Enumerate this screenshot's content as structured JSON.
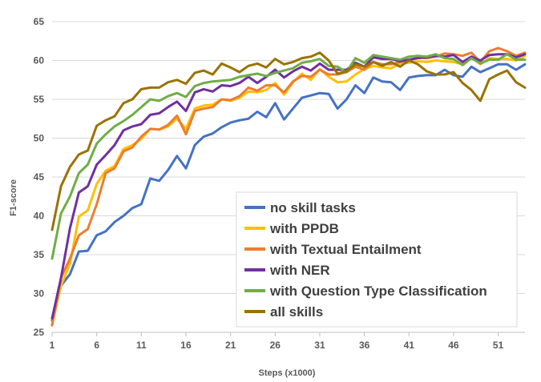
{
  "chart_data": {
    "type": "line",
    "title": "",
    "xlabel": "Steps (x1000)",
    "ylabel": "F1-score",
    "ylim": [
      25,
      65
    ],
    "yticks": [
      25,
      30,
      35,
      40,
      45,
      50,
      55,
      60,
      65
    ],
    "xticks": [
      1,
      6,
      11,
      16,
      21,
      26,
      31,
      36,
      41,
      46,
      51
    ],
    "x": [
      1,
      2,
      3,
      4,
      5,
      6,
      7,
      8,
      9,
      10,
      11,
      12,
      13,
      14,
      15,
      16,
      17,
      18,
      19,
      20,
      21,
      22,
      23,
      24,
      25,
      26,
      27,
      28,
      29,
      30,
      31,
      32,
      33,
      34,
      35,
      36,
      37,
      38,
      39,
      40,
      41,
      42,
      43,
      44,
      45,
      46,
      47,
      48,
      49,
      50,
      51,
      52,
      53,
      54
    ],
    "grid": true,
    "legend_position": "bottom-right",
    "series": [
      {
        "name": "no skill tasks",
        "color": "#4472C4",
        "values": [
          26.5,
          31,
          32.5,
          35.4,
          35.5,
          37.5,
          38,
          39.2,
          40,
          41,
          41.5,
          44.8,
          44.5,
          45.9,
          47.7,
          46.1,
          49.1,
          50.2,
          50.6,
          51.4,
          52,
          52.3,
          52.5,
          53.4,
          52.7,
          54.5,
          52.4,
          53.8,
          55.2,
          55.5,
          55.8,
          55.7,
          53.8,
          55,
          56.8,
          55.8,
          57.8,
          57.3,
          57.2,
          56.2,
          57.8,
          58,
          58.1,
          58.1,
          58.8,
          58.1,
          57.9,
          59.2,
          58.5,
          59,
          59.5,
          59.5,
          58.8,
          59.5
        ]
      },
      {
        "name": "with PPDB",
        "color": "#FFC000",
        "values": [
          26,
          31,
          33.8,
          39.9,
          40.7,
          44.1,
          45.8,
          46.4,
          48.6,
          49.1,
          49.9,
          51.2,
          51.1,
          51.5,
          52.5,
          51.2,
          53.8,
          54.2,
          54.3,
          55,
          54.8,
          55.2,
          56,
          55.9,
          56.2,
          57.1,
          55.6,
          57.2,
          58.3,
          57.5,
          58.9,
          57.9,
          57.2,
          57.3,
          58.2,
          58.9,
          59.3,
          59.1,
          59,
          59.6,
          59.7,
          59.9,
          59.8,
          60,
          59.9,
          59.8,
          59.5,
          60.5,
          59.5,
          60.3,
          60.2,
          60.2,
          60,
          60.6
        ]
      },
      {
        "name": "with Textual Entailment",
        "color": "#ED7D31",
        "values": [
          25.9,
          32,
          34.5,
          37.5,
          38.3,
          41.5,
          45.5,
          46.1,
          48.3,
          48.8,
          50.2,
          51.2,
          51.1,
          51.7,
          52.9,
          50.5,
          53.5,
          53.8,
          54,
          55,
          54.9,
          55.4,
          56.5,
          56.1,
          56.8,
          56.8,
          55.9,
          57.3,
          58,
          57.9,
          58.8,
          58.2,
          58.2,
          58.5,
          59.2,
          58.8,
          59.8,
          59.5,
          59.5,
          59.8,
          60,
          60.4,
          60.3,
          60.5,
          60.9,
          60.8,
          60.6,
          61,
          59.8,
          61.2,
          61.6,
          61.2,
          60.6,
          61
        ]
      },
      {
        "name": "with NER",
        "color": "#7030A0",
        "values": [
          26.8,
          32,
          38.4,
          43,
          43.8,
          46.6,
          47.8,
          49.1,
          51,
          51.5,
          51.8,
          53,
          53.2,
          54,
          54.7,
          53.5,
          55.9,
          56.3,
          56,
          56.8,
          56.7,
          57.1,
          57.9,
          57.1,
          57.9,
          58.8,
          57.8,
          58.6,
          59.2,
          58.7,
          59.6,
          58.8,
          58.8,
          58.8,
          59.7,
          59.2,
          60.4,
          60.2,
          60.2,
          59.9,
          60.1,
          60.3,
          60.4,
          60.6,
          60.5,
          60.7,
          59.8,
          60.5,
          60,
          60.7,
          60.8,
          60.8,
          60.4,
          60.8
        ]
      },
      {
        "name": "with Question Type Classification",
        "color": "#70AD47",
        "values": [
          34.5,
          40.3,
          42.5,
          45.5,
          46.6,
          49.3,
          50.5,
          51.5,
          52.2,
          53,
          54,
          55,
          54.8,
          55.4,
          55.8,
          55.3,
          56.7,
          57.1,
          57.3,
          57.4,
          57.5,
          57.9,
          58.1,
          58.3,
          58,
          58.4,
          58.7,
          59,
          59.7,
          59.9,
          60.2,
          59.3,
          59.2,
          58.5,
          60.3,
          59.7,
          60.7,
          60.5,
          60.3,
          60.1,
          60.5,
          60.6,
          60.5,
          60.8,
          60.3,
          60.2,
          59.4,
          60.3,
          59.6,
          60.1,
          60.1,
          60.8,
          60.1,
          60.1
        ]
      },
      {
        "name": "all skills",
        "color": "#997300",
        "values": [
          38.2,
          43.8,
          46.3,
          47.9,
          48.4,
          51.6,
          52.3,
          52.8,
          54.5,
          55,
          56.3,
          56.5,
          56.5,
          57.2,
          57.5,
          57,
          58.4,
          58.7,
          58.2,
          59.6,
          59.1,
          58.5,
          59.3,
          59.6,
          59.1,
          60.2,
          59.5,
          59.8,
          60.3,
          60.5,
          61,
          60,
          58.3,
          58.6,
          59.5,
          59.2,
          59.8,
          59.3,
          59.8,
          59.2,
          60,
          59.5,
          58.6,
          58.2,
          58.2,
          58.5,
          57.1,
          56.2,
          54.8,
          57.6,
          58.2,
          58.7,
          57.2,
          56.5
        ]
      }
    ]
  }
}
